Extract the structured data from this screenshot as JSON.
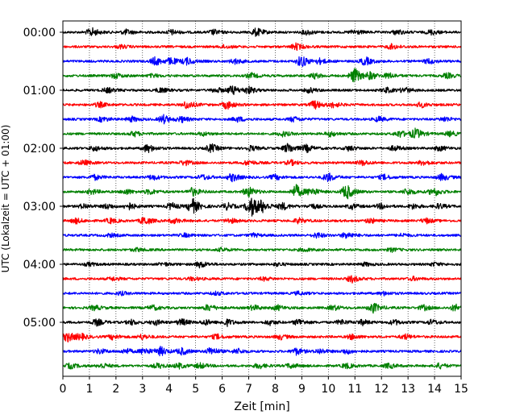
{
  "chart_data": {
    "type": "line",
    "title": "",
    "xlabel": "Zeit  [min]",
    "ylabel": "UTC (Lokalzeit = UTC + 01:00)",
    "xlim": [
      0,
      15
    ],
    "x_ticks": [
      "0",
      "1",
      "2",
      "3",
      "4",
      "5",
      "6",
      "7",
      "8",
      "9",
      "10",
      "11",
      "12",
      "13",
      "14",
      "15"
    ],
    "y_ticks": [
      "00:00",
      "01:00",
      "02:00",
      "03:00",
      "04:00",
      "05:00"
    ],
    "grid": "vertical dotted",
    "legend": "none",
    "trace_colors": [
      "#000000",
      "#ff0000",
      "#0000ff",
      "#008000"
    ],
    "traces": [
      {
        "start": "00:00",
        "color": "#000000",
        "bursts": [
          [
            1.1,
            5
          ],
          [
            2.4,
            3
          ],
          [
            4.1,
            3
          ],
          [
            5.7,
            3
          ],
          [
            7.3,
            5
          ],
          [
            9.2,
            3
          ],
          [
            11.0,
            3
          ],
          [
            12.6,
            3
          ],
          [
            13.9,
            3
          ]
        ]
      },
      {
        "start": "00:15",
        "color": "#ff0000",
        "bursts": [
          [
            2.2,
            2
          ],
          [
            6.1,
            2
          ],
          [
            8.8,
            4
          ],
          [
            12.4,
            3
          ]
        ]
      },
      {
        "start": "00:30",
        "color": "#0000ff",
        "bursts": [
          [
            3.5,
            5
          ],
          [
            4.1,
            4
          ],
          [
            4.7,
            4
          ],
          [
            6.5,
            3
          ],
          [
            9.0,
            7
          ],
          [
            9.7,
            3
          ],
          [
            11.4,
            5
          ],
          [
            13.8,
            3
          ]
        ]
      },
      {
        "start": "00:45",
        "color": "#008000",
        "bursts": [
          [
            2.0,
            3
          ],
          [
            3.4,
            2
          ],
          [
            7.1,
            3
          ],
          [
            9.5,
            3
          ],
          [
            11.0,
            9
          ],
          [
            11.6,
            4
          ],
          [
            12.3,
            3
          ],
          [
            14.5,
            3
          ]
        ]
      },
      {
        "start": "01:00",
        "color": "#000000",
        "bursts": [
          [
            1.7,
            3
          ],
          [
            3.7,
            3
          ],
          [
            5.8,
            3
          ],
          [
            6.4,
            5
          ],
          [
            7.0,
            4
          ],
          [
            9.3,
            3
          ],
          [
            12.2,
            3
          ],
          [
            12.9,
            3
          ]
        ]
      },
      {
        "start": "01:15",
        "color": "#ff0000",
        "bursts": [
          [
            1.4,
            3
          ],
          [
            4.7,
            5
          ],
          [
            6.2,
            5
          ],
          [
            9.5,
            5
          ],
          [
            10.2,
            3
          ],
          [
            13.5,
            3
          ]
        ]
      },
      {
        "start": "01:30",
        "color": "#0000ff",
        "bursts": [
          [
            1.5,
            3
          ],
          [
            2.6,
            3
          ],
          [
            3.8,
            5
          ],
          [
            4.5,
            3
          ],
          [
            6.6,
            3
          ],
          [
            8.7,
            3
          ],
          [
            11.9,
            3
          ],
          [
            14.4,
            3
          ]
        ]
      },
      {
        "start": "01:45",
        "color": "#008000",
        "bursts": [
          [
            2.7,
            3
          ],
          [
            5.3,
            2
          ],
          [
            8.3,
            3
          ],
          [
            10.1,
            3
          ],
          [
            12.7,
            4
          ],
          [
            13.3,
            6
          ],
          [
            14.6,
            3
          ]
        ]
      },
      {
        "start": "02:00",
        "color": "#000000",
        "bursts": [
          [
            1.2,
            3
          ],
          [
            3.2,
            5
          ],
          [
            5.6,
            5
          ],
          [
            7.1,
            3
          ],
          [
            8.5,
            6
          ],
          [
            9.2,
            4
          ],
          [
            10.8,
            3
          ],
          [
            12.5,
            3
          ],
          [
            14.2,
            3
          ]
        ]
      },
      {
        "start": "02:15",
        "color": "#ff0000",
        "bursts": [
          [
            0.8,
            3
          ],
          [
            4.6,
            3
          ],
          [
            7.0,
            3
          ],
          [
            8.6,
            3
          ],
          [
            11.3,
            3
          ],
          [
            13.6,
            3
          ]
        ]
      },
      {
        "start": "02:30",
        "color": "#0000ff",
        "bursts": [
          [
            1.2,
            3
          ],
          [
            3.4,
            3
          ],
          [
            5.3,
            3
          ],
          [
            6.4,
            5
          ],
          [
            8.0,
            3
          ],
          [
            10.0,
            5
          ],
          [
            12.1,
            3
          ],
          [
            14.3,
            4
          ]
        ]
      },
      {
        "start": "02:45",
        "color": "#008000",
        "bursts": [
          [
            1.1,
            3
          ],
          [
            2.4,
            3
          ],
          [
            3.3,
            3
          ],
          [
            4.9,
            5
          ],
          [
            7.0,
            6
          ],
          [
            8.8,
            8
          ],
          [
            9.4,
            4
          ],
          [
            10.7,
            9
          ],
          [
            13.0,
            4
          ],
          [
            14.0,
            5
          ]
        ]
      },
      {
        "start": "03:00",
        "color": "#000000",
        "bursts": [
          [
            0.8,
            3
          ],
          [
            1.7,
            3
          ],
          [
            2.5,
            4
          ],
          [
            4.1,
            4
          ],
          [
            4.9,
            9
          ],
          [
            6.2,
            4
          ],
          [
            7.1,
            12
          ],
          [
            7.5,
            6
          ],
          [
            8.3,
            4
          ],
          [
            9.4,
            3
          ],
          [
            10.9,
            3
          ],
          [
            12.0,
            3
          ],
          [
            13.2,
            3
          ],
          [
            14.2,
            3
          ]
        ]
      },
      {
        "start": "03:15",
        "color": "#ff0000",
        "bursts": [
          [
            0.5,
            3
          ],
          [
            1.8,
            3
          ],
          [
            3.1,
            5
          ],
          [
            4.2,
            3
          ],
          [
            6.3,
            3
          ],
          [
            8.9,
            3
          ],
          [
            11.6,
            3
          ],
          [
            13.7,
            3
          ]
        ]
      },
      {
        "start": "03:30",
        "color": "#0000ff",
        "bursts": [
          [
            1.8,
            2
          ],
          [
            4.6,
            2
          ],
          [
            7.2,
            2
          ],
          [
            9.6,
            3
          ],
          [
            10.7,
            4
          ],
          [
            12.8,
            2
          ]
        ]
      },
      {
        "start": "03:45",
        "color": "#008000",
        "bursts": [
          [
            2.8,
            2
          ],
          [
            6.0,
            2
          ],
          [
            9.1,
            2
          ],
          [
            12.4,
            2
          ]
        ]
      },
      {
        "start": "04:00",
        "color": "#000000",
        "bursts": [
          [
            1.0,
            2
          ],
          [
            3.8,
            2
          ],
          [
            5.2,
            4
          ],
          [
            8.1,
            2
          ],
          [
            11.4,
            2
          ],
          [
            14.0,
            2
          ]
        ]
      },
      {
        "start": "04:15",
        "color": "#ff0000",
        "bursts": [
          [
            1.9,
            2
          ],
          [
            4.9,
            2
          ],
          [
            7.6,
            2
          ],
          [
            10.9,
            4
          ],
          [
            13.2,
            2
          ]
        ]
      },
      {
        "start": "04:30",
        "color": "#0000ff",
        "bursts": [
          [
            2.2,
            2
          ],
          [
            5.8,
            2
          ],
          [
            8.9,
            2
          ],
          [
            12.1,
            2
          ]
        ]
      },
      {
        "start": "04:45",
        "color": "#008000",
        "bursts": [
          [
            1.2,
            3
          ],
          [
            3.4,
            3
          ],
          [
            5.5,
            4
          ],
          [
            7.2,
            3
          ],
          [
            8.1,
            3
          ],
          [
            10.2,
            3
          ],
          [
            11.7,
            6
          ],
          [
            13.6,
            3
          ],
          [
            14.8,
            4
          ]
        ]
      },
      {
        "start": "05:00",
        "color": "#000000",
        "bursts": [
          [
            1.3,
            4
          ],
          [
            2.6,
            3
          ],
          [
            3.5,
            3
          ],
          [
            4.5,
            4
          ],
          [
            5.4,
            3
          ],
          [
            6.2,
            4
          ],
          [
            7.8,
            3
          ],
          [
            8.9,
            4
          ],
          [
            10.5,
            3
          ],
          [
            11.3,
            3
          ],
          [
            12.5,
            3
          ],
          [
            13.9,
            3
          ]
        ]
      },
      {
        "start": "05:15",
        "color": "#ff0000",
        "bursts": [
          [
            0.2,
            6
          ],
          [
            0.7,
            3
          ],
          [
            1.9,
            3
          ],
          [
            3.0,
            3
          ],
          [
            5.8,
            3
          ],
          [
            8.2,
            3
          ],
          [
            10.9,
            3
          ],
          [
            12.9,
            3
          ]
        ]
      },
      {
        "start": "05:30",
        "color": "#0000ff",
        "bursts": [
          [
            1.4,
            3
          ],
          [
            2.4,
            3
          ],
          [
            3.1,
            4
          ],
          [
            3.7,
            5
          ],
          [
            4.5,
            4
          ],
          [
            5.6,
            5
          ],
          [
            6.6,
            3
          ],
          [
            8.8,
            4
          ],
          [
            9.7,
            3
          ],
          [
            10.7,
            3
          ]
        ]
      },
      {
        "start": "05:45",
        "color": "#008000",
        "bursts": [
          [
            0.3,
            3
          ],
          [
            1.5,
            3
          ],
          [
            3.6,
            3
          ],
          [
            4.4,
            3
          ],
          [
            5.2,
            3
          ],
          [
            7.4,
            3
          ],
          [
            8.6,
            3
          ],
          [
            10.7,
            3
          ],
          [
            12.3,
            3
          ],
          [
            14.2,
            3
          ]
        ]
      }
    ]
  }
}
